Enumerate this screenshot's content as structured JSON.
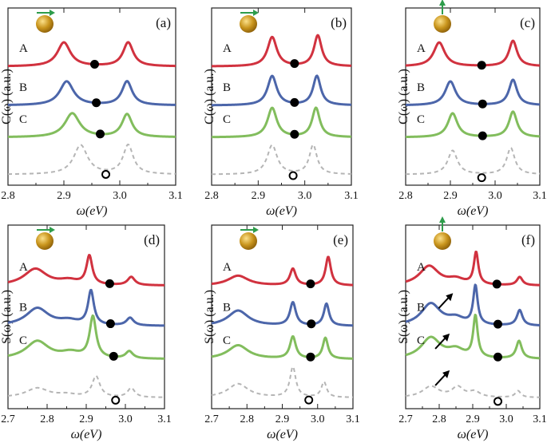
{
  "figure": {
    "colors": {
      "A": "#d1323f",
      "B": "#4c66aa",
      "C": "#82bd5d",
      "ref": "#b5b5b5",
      "particle": "#c9951d",
      "arrow": "#2e9c4b"
    },
    "curve_names": [
      "A",
      "B",
      "C"
    ]
  },
  "chart_data": [
    {
      "id": "a",
      "type": "line",
      "panel_label": "(a)",
      "xlabel": "ω(eV)",
      "ylabel": "C(ω) (a.u.)",
      "xlim": [
        2.8,
        3.1
      ],
      "xticks": [
        2.8,
        2.9,
        3.0,
        3.1
      ],
      "xtick_labels": [
        "2.8",
        "2.9",
        "3.0",
        "3.1"
      ],
      "dipole_orientation": "horizontal",
      "series": [
        {
          "name": "A",
          "peaks": [
            [
              2.9,
              0.45,
              0.014
            ],
            [
              3.015,
              0.45,
              0.011
            ]
          ],
          "marker_x": 2.955,
          "filled": true
        },
        {
          "name": "B",
          "peaks": [
            [
              2.905,
              0.45,
              0.015
            ],
            [
              3.013,
              0.45,
              0.011
            ]
          ],
          "marker_x": 2.958,
          "filled": true
        },
        {
          "name": "C",
          "peaks": [
            [
              2.915,
              0.45,
              0.016
            ],
            [
              3.013,
              0.43,
              0.011
            ]
          ],
          "marker_x": 2.965,
          "filled": true
        },
        {
          "name": "ref",
          "dashed": true,
          "peaks": [
            [
              2.93,
              0.55,
              0.015
            ],
            [
              3.015,
              0.55,
              0.011
            ]
          ],
          "marker_x": 2.975,
          "filled": false
        }
      ]
    },
    {
      "id": "b",
      "type": "line",
      "panel_label": "(b)",
      "xlabel": "ω(eV)",
      "ylabel": "C(ω) (a.u.)",
      "xlim": [
        2.8,
        3.1
      ],
      "xticks": [
        2.8,
        2.9,
        3.0,
        3.1
      ],
      "xtick_labels": [
        "2.8",
        "2.9",
        "3.0",
        "3.1"
      ],
      "dipole_orientation": "horizontal",
      "series": [
        {
          "name": "A",
          "peaks": [
            [
              2.93,
              0.55,
              0.012
            ],
            [
              3.028,
              0.58,
              0.01
            ]
          ],
          "marker_x": 2.978,
          "filled": true
        },
        {
          "name": "B",
          "peaks": [
            [
              2.93,
              0.55,
              0.012
            ],
            [
              3.026,
              0.55,
              0.01
            ]
          ],
          "marker_x": 2.978,
          "filled": true
        },
        {
          "name": "C",
          "peaks": [
            [
              2.93,
              0.55,
              0.012
            ],
            [
              3.024,
              0.55,
              0.01
            ]
          ],
          "marker_x": 2.978,
          "filled": true
        },
        {
          "name": "ref",
          "dashed": true,
          "peaks": [
            [
              2.93,
              0.55,
              0.013
            ],
            [
              3.018,
              0.55,
              0.01
            ]
          ],
          "marker_x": 2.975,
          "filled": false
        }
      ]
    },
    {
      "id": "c",
      "type": "line",
      "panel_label": "(c)",
      "xlabel": "ω(eV)",
      "ylabel": "C(ω) (a.u.)",
      "xlim": [
        2.8,
        3.1
      ],
      "xticks": [
        2.8,
        2.9,
        3.0,
        3.1
      ],
      "xtick_labels": [
        "2.8",
        "2.9",
        "3.0",
        "3.1"
      ],
      "dipole_orientation": "vertical",
      "series": [
        {
          "name": "A",
          "peaks": [
            [
              2.875,
              0.45,
              0.015
            ],
            [
              3.04,
              0.48,
              0.011
            ]
          ],
          "marker_x": 2.97,
          "filled": true
        },
        {
          "name": "B",
          "peaks": [
            [
              2.9,
              0.45,
              0.014
            ],
            [
              3.04,
              0.48,
              0.011
            ]
          ],
          "marker_x": 2.972,
          "filled": true
        },
        {
          "name": "C",
          "peaks": [
            [
              2.905,
              0.45,
              0.013
            ],
            [
              3.04,
              0.48,
              0.011
            ]
          ],
          "marker_x": 2.972,
          "filled": true
        },
        {
          "name": "ref",
          "dashed": true,
          "peaks": [
            [
              2.905,
              0.45,
              0.013
            ],
            [
              3.035,
              0.5,
              0.011
            ]
          ],
          "marker_x": 2.97,
          "filled": false
        }
      ]
    },
    {
      "id": "d",
      "type": "line",
      "panel_label": "(d)",
      "xlabel": "ω(eV)",
      "ylabel": "S(ω) (a.u.)",
      "xlim": [
        2.7,
        3.1
      ],
      "xticks": [
        2.7,
        2.8,
        2.9,
        3.0,
        3.1
      ],
      "xtick_labels": [
        "2.7",
        "2.8",
        "2.9",
        "3.0",
        "3.1"
      ],
      "dipole_orientation": "horizontal",
      "series": [
        {
          "name": "A",
          "peaks": [
            [
              2.77,
              0.3,
              0.035
            ],
            [
              2.855,
              0.08,
              0.03
            ],
            [
              2.908,
              0.52,
              0.009
            ],
            [
              3.015,
              0.15,
              0.011
            ]
          ],
          "marker_x": 2.96,
          "filled": true
        },
        {
          "name": "B",
          "peaks": [
            [
              2.775,
              0.32,
              0.035
            ],
            [
              2.855,
              0.08,
              0.03
            ],
            [
              2.912,
              0.62,
              0.009
            ],
            [
              3.012,
              0.14,
              0.011
            ]
          ],
          "marker_x": 2.962,
          "filled": true
        },
        {
          "name": "C",
          "peaks": [
            [
              2.775,
              0.32,
              0.035
            ],
            [
              2.86,
              0.1,
              0.03
            ],
            [
              2.917,
              0.75,
              0.01
            ],
            [
              3.01,
              0.13,
              0.011
            ]
          ],
          "marker_x": 2.97,
          "filled": true
        },
        {
          "name": "ref",
          "dashed": true,
          "peaks": [
            [
              2.775,
              0.17,
              0.035
            ],
            [
              2.85,
              0.05,
              0.03
            ],
            [
              2.925,
              0.38,
              0.012
            ],
            [
              3.015,
              0.17,
              0.011
            ]
          ],
          "marker_x": 2.975,
          "filled": false
        }
      ]
    },
    {
      "id": "e",
      "type": "line",
      "panel_label": "(e)",
      "xlabel": "ω(eV)",
      "ylabel": "S(ω) (a.u.)",
      "xlim": [
        2.7,
        3.1
      ],
      "xticks": [
        2.7,
        2.8,
        2.9,
        3.0,
        3.1
      ],
      "xtick_labels": [
        "2.7",
        "2.8",
        "2.9",
        "3.0",
        "3.1"
      ],
      "dipole_orientation": "horizontal",
      "series": [
        {
          "name": "A",
          "peaks": [
            [
              2.775,
              0.18,
              0.035
            ],
            [
              2.93,
              0.3,
              0.01
            ],
            [
              3.03,
              0.52,
              0.009
            ]
          ],
          "marker_x": 2.98,
          "filled": true
        },
        {
          "name": "B",
          "peaks": [
            [
              2.775,
              0.28,
              0.035
            ],
            [
              2.93,
              0.42,
              0.01
            ],
            [
              3.025,
              0.4,
              0.009
            ]
          ],
          "marker_x": 2.982,
          "filled": true
        },
        {
          "name": "C",
          "peaks": [
            [
              2.775,
              0.25,
              0.035
            ],
            [
              2.93,
              0.4,
              0.01
            ],
            [
              3.022,
              0.38,
              0.009
            ]
          ],
          "marker_x": 2.98,
          "filled": true
        },
        {
          "name": "ref",
          "dashed": true,
          "peaks": [
            [
              2.775,
              0.25,
              0.035
            ],
            [
              2.93,
              0.55,
              0.01
            ],
            [
              3.018,
              0.28,
              0.009
            ]
          ],
          "marker_x": 2.975,
          "filled": false
        }
      ]
    },
    {
      "id": "f",
      "type": "line",
      "panel_label": "(f)",
      "xlabel": "ω(eV)",
      "ylabel": "S(ω) (a.u.)",
      "xlim": [
        2.7,
        3.1
      ],
      "xticks": [
        2.7,
        2.8,
        2.9,
        3.0,
        3.1
      ],
      "xtick_labels": [
        "2.7",
        "2.8",
        "2.9",
        "3.0",
        "3.1"
      ],
      "dipole_orientation": "vertical",
      "series": [
        {
          "name": "A",
          "peaks": [
            [
              2.77,
              0.35,
              0.035
            ],
            [
              2.85,
              0.1,
              0.03
            ],
            [
              2.91,
              0.58,
              0.008
            ],
            [
              3.04,
              0.15,
              0.01
            ]
          ],
          "marker_x": 2.972,
          "filled": true
        },
        {
          "name": "B",
          "peaks": [
            [
              2.775,
              0.4,
              0.035
            ],
            [
              2.85,
              0.12,
              0.03
            ],
            [
              2.908,
              0.7,
              0.008
            ],
            [
              3.04,
              0.28,
              0.01
            ]
          ],
          "marker_x": 2.975,
          "filled": true
        },
        {
          "name": "C",
          "peaks": [
            [
              2.775,
              0.38,
              0.035
            ],
            [
              2.85,
              0.15,
              0.03
            ],
            [
              2.908,
              0.75,
              0.008
            ],
            [
              3.038,
              0.32,
              0.01
            ]
          ],
          "marker_x": 2.975,
          "filled": true
        },
        {
          "name": "ref",
          "dashed": true,
          "peaks": [
            [
              2.775,
              0.2,
              0.03
            ],
            [
              2.855,
              0.18,
              0.02
            ],
            [
              2.905,
              0.1,
              0.02
            ],
            [
              3.035,
              0.12,
              0.01
            ]
          ],
          "marker_x": 2.975,
          "filled": false
        }
      ],
      "annotation_arrows_near_x": [
        2.865,
        2.855,
        2.855
      ]
    }
  ]
}
